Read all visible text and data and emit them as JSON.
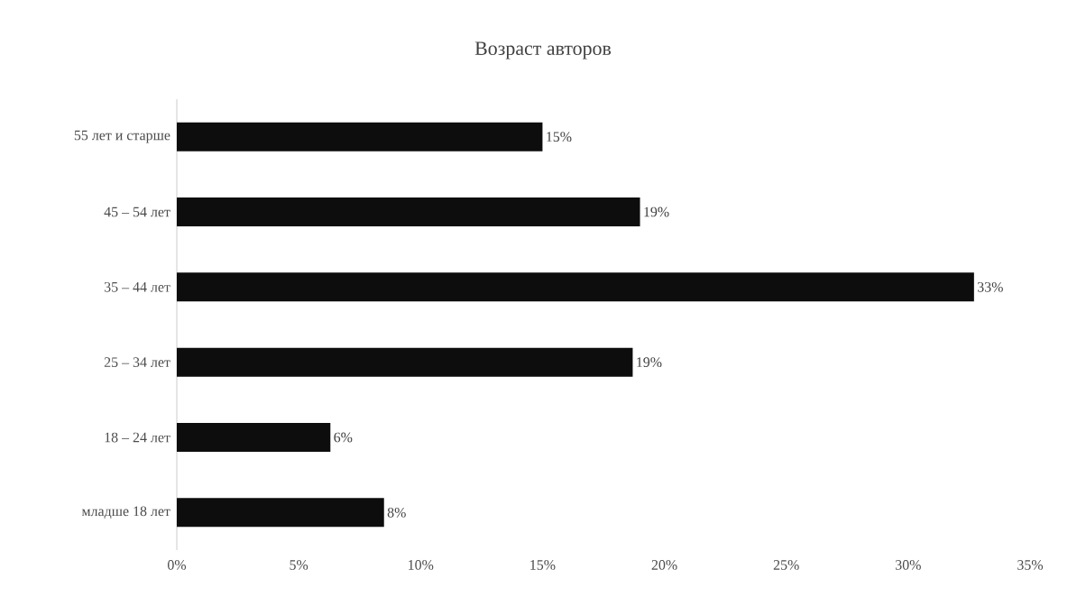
{
  "chart_data": {
    "type": "bar",
    "orientation": "horizontal",
    "title": "Возраст авторов",
    "categories": [
      "55 лет и старше",
      "45 – 54 лет",
      "35 – 44 лет",
      "25 – 34 лет",
      "18 – 24 лет",
      "младше 18 лет"
    ],
    "values": [
      15.0,
      19.0,
      32.7,
      18.7,
      6.3,
      8.5
    ],
    "value_labels": [
      "15%",
      "19%",
      "33%",
      "19%",
      "6%",
      "8%"
    ],
    "color": "#0d0d0d",
    "xlim": [
      0,
      35
    ],
    "xticks": [
      {
        "value": 0,
        "label": "0%"
      },
      {
        "value": 5,
        "label": "5%"
      },
      {
        "value": 10,
        "label": "10%"
      },
      {
        "value": 15,
        "label": "15%"
      },
      {
        "value": 20,
        "label": "20%"
      },
      {
        "value": 25,
        "label": "25%"
      },
      {
        "value": 30,
        "label": "30%"
      },
      {
        "value": 35,
        "label": "35%"
      }
    ],
    "grid": false
  }
}
